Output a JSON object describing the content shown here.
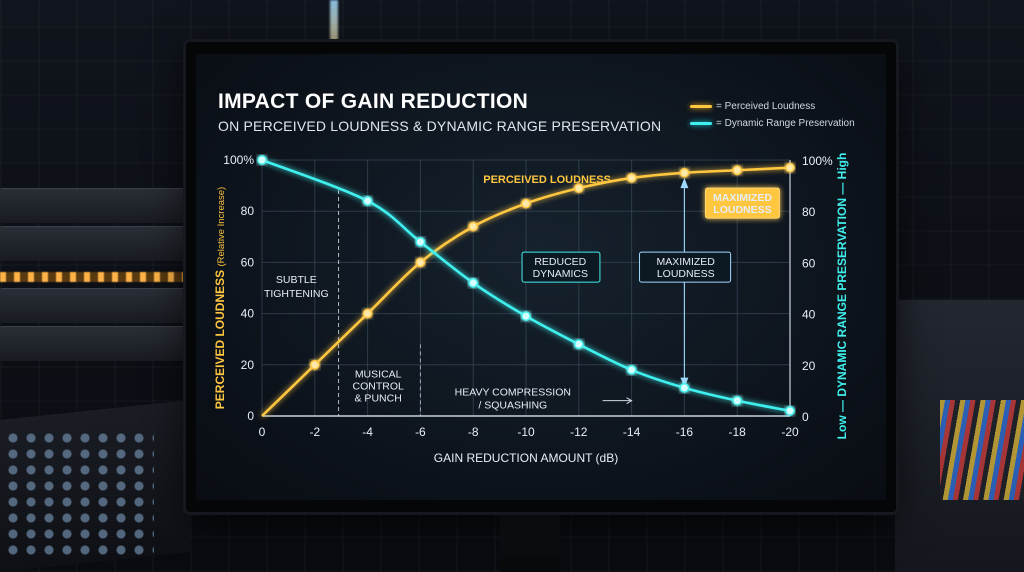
{
  "chart_data": {
    "type": "line",
    "title": "IMPACT OF GAIN REDUCTION",
    "subtitle": "ON PERCEIVED LOUDNESS & DYNAMIC RANGE PRESERVATION",
    "xlabel": "GAIN REDUCTION AMOUNT (dB)",
    "ylabel_left": "PERCEIVED LOUDNESS",
    "ylabel_left_sub": "(Relative Increase)",
    "ylabel_right": "Low — DYNAMIC RANGE PRESERVATION — High",
    "x_ticks": [
      "0",
      "-2",
      "-4",
      "-6",
      "-8",
      "-10",
      "-12",
      "-14",
      "-16",
      "-18",
      "-20"
    ],
    "y_left_ticks": [
      "0",
      "20",
      "40",
      "60",
      "80",
      "100%"
    ],
    "y_right_ticks": [
      "0",
      "20",
      "40",
      "60",
      "80",
      "100%"
    ],
    "xlim": [
      0,
      -20
    ],
    "ylim": [
      0,
      100
    ],
    "grid": true,
    "legend": [
      "= Perceived Loudness",
      "= Dynamic Range Preservation"
    ],
    "legend_position": "top-right",
    "series": [
      {
        "name": "Perceived Loudness",
        "color": "#ffc640",
        "x": [
          0,
          -2,
          -4,
          -6,
          -8,
          -10,
          -12,
          -14,
          -16,
          -18,
          -20
        ],
        "y": [
          0,
          20,
          40,
          60,
          74,
          83,
          89,
          93,
          95,
          96,
          97
        ]
      },
      {
        "name": "Dynamic Range Preservation",
        "color": "#3ff0ee",
        "x": [
          0,
          -4,
          -6,
          -8,
          -10,
          -12,
          -14,
          -16,
          -18,
          -20
        ],
        "y": [
          100,
          84,
          68,
          52,
          39,
          28,
          18,
          11,
          6,
          2
        ]
      }
    ],
    "annotations": {
      "loudness_label": "PERCEIVED LOUDNESS",
      "subtle": [
        "SUBTLE",
        "TIGHTENING"
      ],
      "musical": [
        "MUSICAL",
        "CONTROL",
        "& PUNCH"
      ],
      "heavy": [
        "HEAVY COMPRESSION",
        "/ SQUASHING"
      ],
      "reduced": [
        "REDUCED",
        "DYNAMICS"
      ],
      "maximized_box": [
        "MAXIMIZED",
        "LOUDNESS"
      ],
      "maximized_mid": [
        "MAXIMIZED",
        "LOUDNESS"
      ]
    }
  }
}
